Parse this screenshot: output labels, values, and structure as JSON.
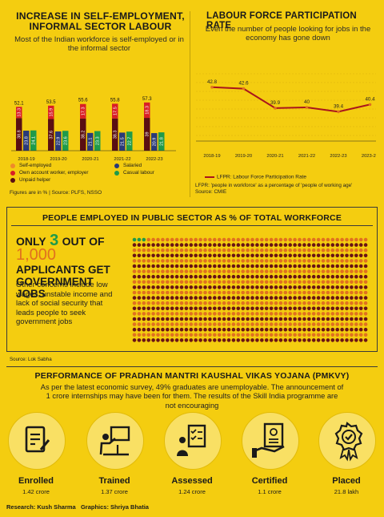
{
  "left_chart": {
    "title": "INCREASE IN SELF-EMPLOYMENT, INFORMAL SECTOR LABOUR",
    "subtitle": "Most of the Indian workforce is self-employed or in the informal sector",
    "footnote": "Figures are in % | Source: PLFS, NSSO"
  },
  "right_chart": {
    "title": "LABOUR FORCE PARTICIPATION RATE",
    "subtitle": "Even the number of people looking for jobs in the economy has gone down",
    "legend": "LFPR: Labour Force Participation Rate",
    "note": "LFPR: 'people in workforce' as a percentage of 'people of working age'",
    "source": "Source: CMIE"
  },
  "chart_data": [
    {
      "type": "bar",
      "categories": [
        "2018-19",
        "2019-20",
        "2020-21",
        "2021-22",
        "2022-23"
      ],
      "series": [
        {
          "name": "Unpaid helper",
          "color": "#5a0f12",
          "values": [
            38.8,
            37.6,
            38.2,
            38.3,
            39.0
          ]
        },
        {
          "name": "Salaried",
          "color": "#2a3a78",
          "values": [
            23.8,
            22.9,
            21.1,
            21.5,
            20.9
          ]
        },
        {
          "name": "Casual labour",
          "color": "#1f9a4a",
          "values": [
            24.1,
            23.6,
            23.3,
            22.7,
            21.8
          ]
        },
        {
          "name": "Own account worker, employer",
          "color": "#d91f26",
          "values": [
            13.3,
            15.9,
            17.3,
            17.5,
            18.3
          ]
        },
        {
          "name": "Self-employed",
          "color": "#ef8a2a",
          "values": [
            52.1,
            53.5,
            55.6,
            55.8,
            57.3
          ]
        }
      ],
      "legend_order": [
        "Self-employed",
        "Salaried",
        "Own account worker, employer",
        "Casual labour",
        "Unpaid helper"
      ]
    },
    {
      "type": "line",
      "x": [
        "2018-19",
        "2019-20",
        "2020-21",
        "2021-22",
        "2022-23",
        "2023-24"
      ],
      "series": [
        {
          "name": "LFPR: Labour Force Participation Rate",
          "color": "#a9151c",
          "values": [
            42.8,
            42.6,
            39.9,
            40.0,
            39.4,
            40.4
          ]
        }
      ],
      "grid": true
    }
  ],
  "public_sector": {
    "title": "PEOPLE EMPLOYED IN PUBLIC SECTOR AS % OF TOTAL WORKFORCE",
    "headline_only": "ONLY",
    "headline_num": "3",
    "headline_outof": "OUT OF",
    "headline_total": "1,000",
    "headline_rest": "APPLICANTS GET GOVERNMENT JOBS",
    "body": "Other concerns include low wages, unstable income and lack of social security that leads people to seek government jobs",
    "source": "Source: Lok Sabha",
    "green_count": 3,
    "total_count": 1000
  },
  "pmkvy": {
    "title": "PERFORMANCE OF PRADHAN MANTRI KAUSHAL VIKAS YOJANA (PMKVY)",
    "subtitle": "As per the latest economic survey, 49% graduates are unemployable. The announcement of 1 crore internships may have been for them. The results of the Skill India programme are not encouraging",
    "stats": [
      {
        "label": "Enrolled",
        "value": "1.42 crore",
        "icon": "document-pen-icon"
      },
      {
        "label": "Trained",
        "value": "1.37 crore",
        "icon": "teacher-board-icon"
      },
      {
        "label": "Assessed",
        "value": "1.24 crore",
        "icon": "checklist-person-icon"
      },
      {
        "label": "Certified",
        "value": "1.1 crore",
        "icon": "certificate-hand-icon"
      },
      {
        "label": "Placed",
        "value": "21.8 lakh",
        "icon": "badge-check-icon"
      }
    ]
  },
  "credits": "Research: Kush Sharma   Graphics: Shriya Bhatia",
  "colors": {
    "background": "#f4cd10",
    "dot_orange": "#e0711f",
    "dot_maroon": "#6a1415",
    "dot_green": "#1f9a4a"
  }
}
